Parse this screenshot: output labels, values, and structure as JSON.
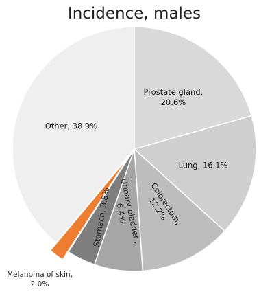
{
  "chart_data": {
    "type": "pie",
    "title": "Incidence, males",
    "slices": [
      {
        "label": "Prostate gland",
        "value": 20.6,
        "display_label": [
          "Prostate gland,",
          "20.6%"
        ],
        "color": "#d9d9d9",
        "exploded": false
      },
      {
        "label": "Lung",
        "value": 16.1,
        "display_label": [
          "Lung, 16.1%"
        ],
        "color": "#cfcfcf",
        "exploded": false
      },
      {
        "label": "Colorectum",
        "value": 12.2,
        "display_label": [
          "Colorectum,",
          "12.2%"
        ],
        "color": "#bdbdbd",
        "exploded": false
      },
      {
        "label": "Urinary bladder",
        "value": 6.4,
        "display_label": [
          "Urinary bladder ,",
          "6.4%"
        ],
        "color": "#a6a6a6",
        "exploded": false
      },
      {
        "label": "Stomach",
        "value": 3.8,
        "display_label": [
          "Stomach, 3.8%"
        ],
        "color": "#7f7f7f",
        "exploded": false
      },
      {
        "label": "Melanoma of skin",
        "value": 2.0,
        "display_label": [
          "Melanoma of skin,",
          "2.0%"
        ],
        "color": "#ed7d31",
        "exploded": true
      },
      {
        "label": "Other",
        "value": 38.9,
        "display_label": [
          "Other, 38.9%"
        ],
        "color": "#efefef",
        "exploded": false
      }
    ],
    "start_angle_deg": 0,
    "direction": "clockwise",
    "legend": "none"
  }
}
